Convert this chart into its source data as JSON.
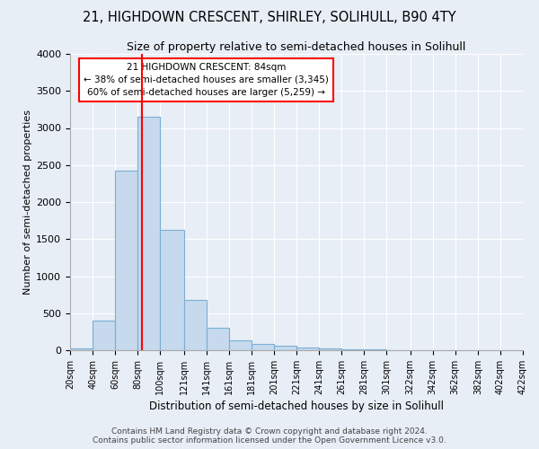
{
  "title": "21, HIGHDOWN CRESCENT, SHIRLEY, SOLIHULL, B90 4TY",
  "subtitle": "Size of property relative to semi-detached houses in Solihull",
  "xlabel": "Distribution of semi-detached houses by size in Solihull",
  "ylabel": "Number of semi-detached properties",
  "bar_color": "#c6d9ed",
  "bar_edge_color": "#7aafd4",
  "vline_color": "red",
  "vline_x": 84,
  "bin_edges": [
    20,
    40,
    60,
    80,
    100,
    121,
    141,
    161,
    181,
    201,
    221,
    241,
    261,
    281,
    301,
    322,
    342,
    362,
    382,
    402,
    422
  ],
  "bar_heights": [
    30,
    400,
    2420,
    3150,
    1620,
    680,
    300,
    130,
    80,
    55,
    40,
    20,
    10,
    8,
    5,
    4,
    3,
    2,
    2,
    2
  ],
  "ylim": [
    0,
    4000
  ],
  "yticks": [
    0,
    500,
    1000,
    1500,
    2000,
    2500,
    3000,
    3500,
    4000
  ],
  "annotation_title": "21 HIGHDOWN CRESCENT: 84sqm",
  "annotation_line1": "← 38% of semi-detached houses are smaller (3,345)",
  "annotation_line2": "60% of semi-detached houses are larger (5,259) →",
  "annotation_box_color": "white",
  "annotation_box_edge": "red",
  "footer1": "Contains HM Land Registry data © Crown copyright and database right 2024.",
  "footer2": "Contains public sector information licensed under the Open Government Licence v3.0.",
  "bg_color": "#e8eef6",
  "plot_bg_color": "#e8eef6"
}
